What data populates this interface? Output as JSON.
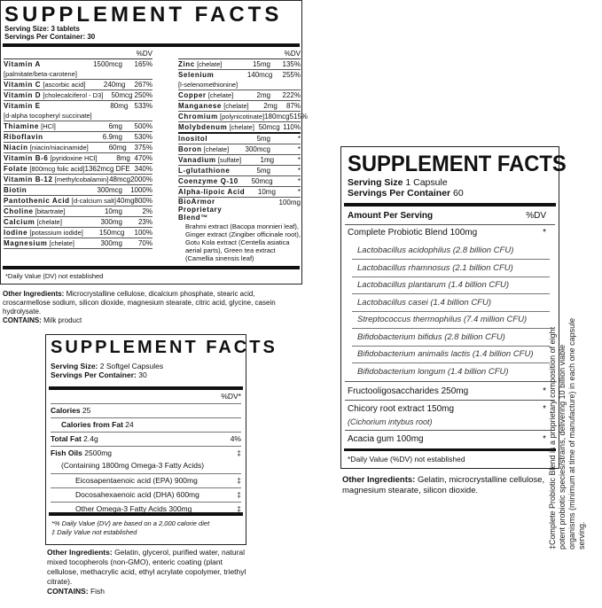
{
  "label1": {
    "title": "SUPPLEMENT FACTS",
    "serving_size": "Serving Size: 3 tablets",
    "servings_per_container": "Servings Per Container: 30",
    "dv_header": "%DV",
    "left_rows": [
      {
        "name": "Vitamin A",
        "form": "[palmitate/beta-carotene]",
        "amount": "1500mcg",
        "dv": "165%"
      },
      {
        "name": "Vitamin C",
        "form": "[ascorbic acid]",
        "amount": "240mg",
        "dv": "267%"
      },
      {
        "name": "Vitamin D",
        "form": "[cholecalciferol - D3]",
        "amount": "50mcg",
        "dv": "250%"
      },
      {
        "name": "Vitamin E",
        "form": "[d-alpha tocopheryl succinate]",
        "amount": "80mg",
        "dv": "533%"
      },
      {
        "name": "Thiamine",
        "form": "[HCl]",
        "amount": "6mg",
        "dv": "500%"
      },
      {
        "name": "Riboflavin",
        "form": "",
        "amount": "6.9mg",
        "dv": "530%"
      },
      {
        "name": "Niacin",
        "form": "[niacin/niacinamide]",
        "amount": "60mg",
        "dv": "375%"
      },
      {
        "name": "Vitamin B-6",
        "form": "[pyridoxine HCl]",
        "amount": "8mg",
        "dv": "470%"
      },
      {
        "name": "Folate",
        "form": "[800mcg folic acid]",
        "amount": "1362mcg DFE",
        "dv": "340%"
      },
      {
        "name": "Vitamin B-12",
        "form": "[methylcobalamin]",
        "amount": "48mcg",
        "dv": "2000%"
      },
      {
        "name": "Biotin",
        "form": "",
        "amount": "300mcg",
        "dv": "1000%"
      },
      {
        "name": "Pantothenic Acid",
        "form": "[d-calcium salt]",
        "amount": "40mg",
        "dv": "800%"
      },
      {
        "name": "Choline",
        "form": "[bitartrate]",
        "amount": "10mg",
        "dv": "2%"
      },
      {
        "name": "Calcium",
        "form": "[chelate]",
        "amount": "300mg",
        "dv": "23%"
      },
      {
        "name": "Iodine",
        "form": "[potassium iodide]",
        "amount": "150mcg",
        "dv": "100%"
      },
      {
        "name": "Magnesium",
        "form": "[chelate]",
        "amount": "300mg",
        "dv": "70%"
      }
    ],
    "right_rows": [
      {
        "name": "Zinc",
        "form": "[chelate]",
        "amount": "15mg",
        "dv": "135%"
      },
      {
        "name": "Selenium",
        "form": "[l-selenomethionine]",
        "amount": "140mcg",
        "dv": "255%"
      },
      {
        "name": "Copper",
        "form": "[chelate]",
        "amount": "2mg",
        "dv": "222%"
      },
      {
        "name": "Manganese",
        "form": "[chelate]",
        "amount": "2mg",
        "dv": "87%"
      },
      {
        "name": "Chromium",
        "form": "[polynicotinate]",
        "amount": "180mcg",
        "dv": "515%"
      },
      {
        "name": "Molybdenum",
        "form": "[chelate]",
        "amount": "50mcg",
        "dv": "110%"
      },
      {
        "name": "Inositol",
        "form": "",
        "amount": "5mg",
        "dv": "*"
      },
      {
        "name": "Boron",
        "form": "[chelate]",
        "amount": "300mcg",
        "dv": "*"
      },
      {
        "name": "Vanadium",
        "form": "[sulfate]",
        "amount": "1mg",
        "dv": "*"
      },
      {
        "name": "L-glutathione",
        "form": "",
        "amount": "5mg",
        "dv": "*"
      },
      {
        "name": "Coenzyme Q-10",
        "form": "",
        "amount": "50mcg",
        "dv": "*"
      },
      {
        "name": "Alpha-lipoic Acid",
        "form": "",
        "amount": "10mg",
        "dv": "*"
      }
    ],
    "blend": {
      "name": "BioArmor Proprietary Blend™",
      "amount": "100mg",
      "dv": "*",
      "ingredients": "Brahmi extract (Bacopa monnieri leaf), Ginger extract (Zingiber officinale root), Gotu Kola extract (Centella asiatica aerial parts), Green tea extract (Camellia sinensis leaf)"
    },
    "footnote": "*Daily Value (DV) not established",
    "other_ingredients_label": "Other Ingredients:",
    "other_ingredients": "Microcrystalline cellulose, dicalcium phosphate, stearic acid, croscarmellose sodium, silicon dioxide, magnesium stearate, citric acid, glycine, casein hydrolysate.",
    "contains_label": "CONTAINS:",
    "contains": "Milk product"
  },
  "label2": {
    "title": "SUPPLEMENT FACTS",
    "serving_size_label": "Serving Size:",
    "serving_size": "2 Softgel Capsules",
    "servings_label": "Servings Per Container:",
    "servings": "30",
    "dv_header": "%DV*",
    "rows": [
      {
        "label": "Calories",
        "value": "25",
        "dv": ""
      },
      {
        "label": "Calories from Fat",
        "value": "24",
        "dv": ""
      },
      {
        "label": "Total Fat",
        "value": "2.4g",
        "dv": "4%"
      },
      {
        "label": "Fish Oils",
        "value": "2500mg",
        "dv": "‡",
        "sub": "(Containing 1800mg Omega-3 Fatty Acids)"
      },
      {
        "label": "Eicosapentaenoic acid (EPA)",
        "value": "900mg",
        "dv": "‡"
      },
      {
        "label": "Docosahexaenoic acid (DHA)",
        "value": "600mg",
        "dv": "‡"
      },
      {
        "label": "Other Omega-3 Fatty Acids",
        "value": "300mg",
        "dv": "‡"
      }
    ],
    "footnote1": "*% Daily Value (DV) are based on a 2,000 calorie diet",
    "footnote2": "‡ Daily Value not established",
    "other_ingredients_label": "Other Ingredients:",
    "other_ingredients": "Gelatin, glycerol, purified water, natural mixed tocopherols (non-GMO), enteric coating (plant cellulose, methacrylic acid, ethyl acrylate copolymer, triethyl citrate).",
    "contains_label": "CONTAINS:",
    "contains": "Fish"
  },
  "label3": {
    "title": "SUPPLEMENT FACTS",
    "serving_size_label": "Serving Size",
    "serving_size": "1 Capsule",
    "servings_label": "Servings Per Container",
    "servings": "60",
    "amount_header": "Amount Per Serving",
    "dv_header": "%DV",
    "blend": {
      "label": "Complete Probiotic Blend 100mg",
      "dv": "*"
    },
    "strains": [
      "Lactobacillus acidophilus (2.8 billion CFU)",
      "Lactobacillus rhamnosus (2.1 billion CFU)",
      "Lactobacillus plantarum (1.4 billion CFU)",
      "Lactobacillus casei (1.4 billion CFU)",
      "Streptococcus thermophilus (7.4 million CFU)",
      "Bifidobacterium bifidus (2.8 billion CFU)",
      "Bifidobacterium animalis lactis (1.4 billion CFU)",
      "Bifidobacterium longum (1.4 billion CFU)"
    ],
    "fos": {
      "label": "Fructooligosaccharides 250mg",
      "dv": "*"
    },
    "chicory": {
      "label": "Chicory root extract 150mg",
      "sub": "(Cichorium intybus root)",
      "dv": "*"
    },
    "acacia": {
      "label": "Acacia gum 100mg",
      "dv": "*"
    },
    "footnote": "*Daily Value (%DV) not established",
    "other_ingredients_label": "Other Ingredients:",
    "other_ingredients": "Gelatin, microcrystalline cellulose, magnesium stearate, silicon dioxide.",
    "side_note": "‡Complete Probiotic Blend is a proprietary composition of eight potent probiotic species/strains, delivering 10 billion viable organisms (minimum at time of manufacture) in each one capsule serving."
  }
}
